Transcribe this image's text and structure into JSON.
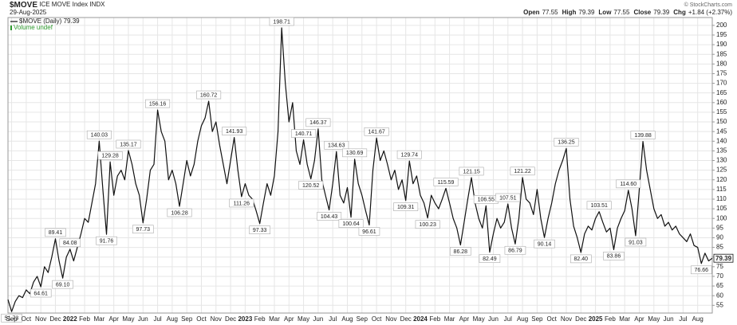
{
  "header": {
    "symbol": "$MOVE",
    "name": "ICE MOVE Index INDX",
    "date": "29-Aug-2025",
    "watermark": "© StockCharts.com",
    "quote": [
      {
        "label": "Open",
        "value": 77.55
      },
      {
        "label": "High",
        "value": 79.39
      },
      {
        "label": "Low",
        "value": 77.55
      },
      {
        "label": "Close",
        "value": 79.39
      },
      {
        "label": "Chg",
        "value": "+1.84 (+2.37%)"
      }
    ]
  },
  "chart_data": {
    "type": "line",
    "grid": true,
    "volume_legend": "Volume undef",
    "volume_color": "#2e9a2e",
    "ylim": [
      51,
      202
    ],
    "yticks": [
      55,
      60,
      65,
      70,
      75,
      80,
      85,
      90,
      95,
      100,
      105,
      110,
      115,
      120,
      125,
      130,
      135,
      140,
      145,
      150,
      155,
      160,
      165,
      170,
      175,
      180,
      185,
      190,
      195,
      200
    ],
    "categories": [
      null,
      "Sep",
      null,
      null,
      null,
      "Oct",
      null,
      null,
      null,
      "Nov",
      null,
      null,
      null,
      "Dec",
      null,
      null,
      null,
      "2022",
      null,
      null,
      null,
      "Feb",
      null,
      null,
      null,
      "Mar",
      null,
      null,
      null,
      "Apr",
      null,
      null,
      null,
      "May",
      null,
      null,
      null,
      "Jun",
      null,
      null,
      null,
      "Jul",
      null,
      null,
      null,
      "Aug",
      null,
      null,
      null,
      "Sep",
      null,
      null,
      null,
      "Oct",
      null,
      null,
      null,
      "Nov",
      null,
      null,
      null,
      "Dec",
      null,
      null,
      null,
      "2023",
      null,
      null,
      null,
      "Feb",
      null,
      null,
      null,
      "Mar",
      null,
      null,
      null,
      "Apr",
      null,
      null,
      null,
      "May",
      null,
      null,
      null,
      "Jun",
      null,
      null,
      null,
      "Jul",
      null,
      null,
      null,
      "Aug",
      null,
      null,
      null,
      "Sep",
      null,
      null,
      null,
      "Oct",
      null,
      null,
      null,
      "Nov",
      null,
      null,
      null,
      "Dec",
      null,
      null,
      null,
      "2024",
      null,
      null,
      null,
      "Feb",
      null,
      null,
      null,
      "Mar",
      null,
      null,
      null,
      "Apr",
      null,
      null,
      null,
      "May",
      null,
      null,
      null,
      "Jun",
      null,
      null,
      null,
      "Jul",
      null,
      null,
      null,
      "Aug",
      null,
      null,
      null,
      "Sep",
      null,
      null,
      null,
      "Oct",
      null,
      null,
      null,
      "Nov",
      null,
      null,
      null,
      "Dec",
      null,
      null,
      null,
      "2025",
      null,
      null,
      null,
      "Feb",
      null,
      null,
      null,
      "Mar",
      null,
      null,
      null,
      "Apr",
      null,
      null,
      null,
      "May",
      null,
      null,
      null,
      "Jun",
      null,
      null,
      null,
      "Jul",
      null,
      null,
      null,
      "Aug",
      null,
      null,
      null,
      null
    ],
    "series": [
      {
        "name": "$MOVE (Daily)",
        "color": "#111111",
        "values": [
          58,
          51.73,
          57,
          60,
          59,
          63,
          61,
          67,
          70,
          64.61,
          75,
          72,
          80,
          89.41,
          78,
          69.1,
          80,
          84.08,
          78,
          85,
          92,
          100,
          98,
          108,
          118,
          140.03,
          115,
          91.76,
          129.28,
          112,
          122,
          125,
          120,
          135.17,
          128,
          118,
          112,
          97.73,
          110,
          125,
          128,
          156.16,
          145,
          140,
          120,
          125,
          118,
          106.28,
          118,
          130,
          122,
          128,
          140,
          148,
          152,
          160.72,
          145,
          150,
          138,
          128,
          118,
          130,
          141.93,
          125,
          111.26,
          118,
          112,
          110,
          104,
          97.33,
          108,
          118,
          112,
          122,
          145,
          198.71,
          170,
          150,
          160,
          135,
          128,
          140.71,
          128,
          120.52,
          130,
          146.37,
          120,
          112,
          104.43,
          118,
          134.63,
          112,
          108,
          116,
          100.64,
          130.69,
          118,
          112,
          104,
          96.61,
          125,
          141.67,
          130,
          135,
          128,
          120,
          125,
          115,
          120,
          109.31,
          129.74,
          118,
          122,
          112,
          108,
          100.23,
          112,
          108,
          105,
          110,
          115.59,
          108,
          100,
          95,
          86.28,
          98,
          110,
          121.15,
          108,
          100,
          95,
          106.55,
          82.49,
          92,
          100,
          95,
          98,
          107.51,
          95,
          86.79,
          100,
          121.22,
          110,
          108,
          102,
          115,
          100,
          90.14,
          100,
          108,
          118,
          125,
          130,
          136.25,
          110,
          96,
          90,
          82.4,
          92,
          96,
          94,
          100,
          103.51,
          98,
          93,
          95,
          83.86,
          95,
          100,
          104,
          114.6,
          105,
          91.03,
          115,
          139.88,
          125,
          115,
          105,
          100,
          102,
          96,
          98,
          94,
          96,
          92,
          90,
          88,
          92,
          86,
          85,
          76.66,
          82,
          78,
          79.39
        ],
        "value_labels": [
          null,
          "51.73",
          null,
          null,
          null,
          null,
          null,
          null,
          null,
          "64.61",
          null,
          null,
          null,
          "89.41",
          null,
          "69.10",
          null,
          "84.08",
          null,
          null,
          null,
          null,
          null,
          null,
          null,
          "140.03",
          null,
          "91.76",
          "129.28",
          null,
          null,
          null,
          null,
          "135.17",
          null,
          null,
          null,
          "97.73",
          null,
          null,
          null,
          "156.16",
          null,
          null,
          null,
          null,
          null,
          "106.28",
          null,
          null,
          null,
          null,
          null,
          null,
          null,
          "160.72",
          null,
          null,
          null,
          null,
          null,
          null,
          "141.93",
          null,
          "111.26",
          null,
          null,
          null,
          null,
          "97.33",
          null,
          null,
          null,
          null,
          null,
          "198.71",
          null,
          null,
          null,
          null,
          null,
          "140.71",
          null,
          "120.52",
          null,
          "146.37",
          null,
          null,
          "104.43",
          null,
          "134.63",
          null,
          null,
          null,
          "100.64",
          "130.69",
          null,
          null,
          null,
          "96.61",
          null,
          "141.67",
          null,
          null,
          null,
          null,
          null,
          null,
          null,
          "109.31",
          "129.74",
          null,
          null,
          null,
          null,
          "100.23",
          null,
          null,
          null,
          null,
          "115.59",
          null,
          null,
          null,
          "86.28",
          null,
          null,
          "121.15",
          null,
          null,
          null,
          "106.55",
          "82.49",
          null,
          null,
          null,
          null,
          "107.51",
          null,
          "86.79",
          null,
          "121.22",
          null,
          null,
          null,
          null,
          null,
          "90.14",
          null,
          null,
          null,
          null,
          null,
          "136.25",
          null,
          null,
          null,
          "82.40",
          null,
          null,
          null,
          null,
          "103.51",
          null,
          null,
          null,
          "83.86",
          null,
          null,
          null,
          "114.60",
          null,
          "91.03",
          null,
          "139.88",
          null,
          null,
          null,
          null,
          null,
          null,
          null,
          null,
          null,
          null,
          null,
          null,
          null,
          null,
          null,
          "76.66",
          null,
          null,
          null
        ]
      }
    ]
  }
}
